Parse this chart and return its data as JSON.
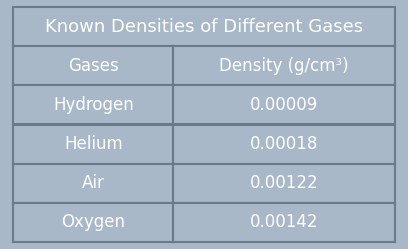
{
  "title": "Known Densities of Different Gases",
  "col_headers": [
    "Gases",
    "Density (g/cm³)"
  ],
  "rows": [
    [
      "Hydrogen",
      "0.00009"
    ],
    [
      "Helium",
      "0.00018"
    ],
    [
      "Air",
      "0.00122"
    ],
    [
      "Oxygen",
      "0.00142"
    ]
  ],
  "bg_color": "#a8b8c8",
  "border_color": "#6a7a8a",
  "text_color": "#ffffff",
  "title_fontsize": 13,
  "header_fontsize": 12,
  "cell_fontsize": 12
}
